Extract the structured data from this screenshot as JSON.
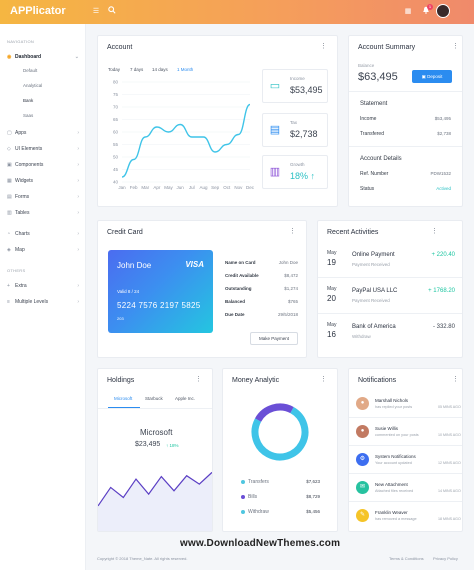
{
  "app": {
    "title": "APPlicator",
    "notif_count": "1"
  },
  "colors": {
    "accent": "#2b8cf0",
    "brand": "#f5a524",
    "positive": "#1bc5a0",
    "negative": "#e85a5a"
  },
  "sidebar": {
    "nav_heading": "NAVIGATION",
    "items": [
      {
        "label": "Dashboard",
        "icon": "home-icon"
      },
      {
        "label": "Apps",
        "icon": "apps-icon"
      },
      {
        "label": "UI Elements",
        "icon": "layers-icon"
      },
      {
        "label": "Components",
        "icon": "box-icon"
      },
      {
        "label": "Widgets",
        "icon": "grid-icon"
      },
      {
        "label": "Forms",
        "icon": "form-icon"
      },
      {
        "label": "Tables",
        "icon": "table-icon"
      },
      {
        "label": "Charts",
        "icon": "chart-icon"
      },
      {
        "label": "Map",
        "icon": "map-icon"
      }
    ],
    "sub_items": [
      "Default",
      "Analytical",
      "Bank",
      "Saas"
    ],
    "others_heading": "OTHERS",
    "others": [
      {
        "label": "Extra",
        "icon": "plus-icon"
      },
      {
        "label": "Multiple Levels",
        "icon": "levels-icon"
      }
    ]
  },
  "account": {
    "title": "Account",
    "tabs": [
      "Today",
      "7 days",
      "14 days",
      "1 Month"
    ],
    "stats": [
      {
        "label": "Income",
        "value": "$53,495",
        "icon": "wallet-icon"
      },
      {
        "label": "Tax",
        "value": "$2,738",
        "icon": "receipt-icon"
      },
      {
        "label": "Growth",
        "value": "18% ↑",
        "icon": "bar-chart-icon"
      }
    ]
  },
  "chart_data": {
    "type": "line",
    "categories": [
      "Jan",
      "Feb",
      "Mar",
      "Apr",
      "May",
      "Jun",
      "Jul",
      "Aug",
      "Sep",
      "Oct",
      "Nov",
      "Dec"
    ],
    "values": [
      42,
      49,
      58,
      62,
      60,
      63,
      58,
      58,
      52,
      55,
      59,
      71
    ],
    "yticks": [
      "40",
      "45",
      "50",
      "55",
      "60",
      "65",
      "70",
      "75",
      "80"
    ],
    "ylim": [
      40,
      80
    ]
  },
  "summary": {
    "title": "Account Summary",
    "balance_label": "Balance",
    "balance": "$63,495",
    "deposit_label": "Deposit",
    "statement_heading": "Statement",
    "income_label": "Income",
    "income_value": "$53,495",
    "transferred_label": "Transfered",
    "transferred_value": "$2,738",
    "details_heading": "Account Details",
    "ref_label": "Ref. Number",
    "ref_value": "PDW1532",
    "status_label": "Status",
    "status_value": "Actived"
  },
  "credit_card": {
    "title": "Credit Card",
    "holder": "John Doe",
    "brand": "VISA",
    "number": "5224  7576  2197  5825",
    "valid": "Valid  8 / 24",
    "cvv": "203",
    "rows": [
      {
        "label": "Name on Card",
        "value": "John Doe"
      },
      {
        "label": "Credit Available",
        "value": "$8,472"
      },
      {
        "label": "Outstanding",
        "value": "$1,274"
      },
      {
        "label": "Balanced",
        "value": "$765"
      },
      {
        "label": "Due Date",
        "value": "29/5/2018"
      }
    ],
    "payment_button": "Make Payment"
  },
  "activities": {
    "title": "Recent Activities",
    "items": [
      {
        "month": "May",
        "day": "19",
        "title": "Online Payment",
        "sub": "Payment Received",
        "amount": "+ 220.40",
        "positive": true
      },
      {
        "month": "May",
        "day": "20",
        "title": "PayPal USA LLC",
        "sub": "Payment Received",
        "amount": "+ 1768.20",
        "positive": true
      },
      {
        "month": "May",
        "day": "16",
        "title": "Bank of America",
        "sub": "Withdraw",
        "amount": "- 332.80",
        "positive": false
      }
    ]
  },
  "holdings": {
    "title": "Holdings",
    "tabs": [
      "Microsoft",
      "Starbuck",
      "Apple Inc."
    ],
    "company": "Microsoft",
    "value": "$23,495",
    "change": "↑ 18%"
  },
  "holdings_chart": {
    "type": "area",
    "values": [
      30,
      52,
      40,
      62,
      44,
      65,
      48,
      66,
      56,
      70
    ]
  },
  "money": {
    "title": "Money Analytic",
    "items": [
      {
        "label": "Transfers",
        "value": "$7,623",
        "color": "#4fc6e0"
      },
      {
        "label": "Bills",
        "value": "$8,729",
        "color": "#6a4fd6"
      },
      {
        "label": "Withdraw",
        "value": "$5,456",
        "color": "#4fc6e0"
      }
    ]
  },
  "donut_chart": {
    "type": "pie",
    "values": [
      75,
      25
    ],
    "colors": [
      "#3fc4e8",
      "#6a4fd6"
    ]
  },
  "notifications": {
    "title": "Notifications",
    "items": [
      {
        "title": "Marshall Nichols",
        "sub": "has replied your posts",
        "time": "05 MINS AGO",
        "icon": "avatar-icon",
        "color": "#e1a987"
      },
      {
        "title": "Susie Willis",
        "sub": "commented on your posts",
        "time": "10 MINS AGO",
        "icon": "avatar-icon",
        "color": "#c27a62"
      },
      {
        "title": "System Notifications",
        "sub": "Your account updated",
        "time": "12 MINS AGO",
        "icon": "gear-icon",
        "color": "#3d6ef0"
      },
      {
        "title": "New Attachment",
        "sub": "Attached files received",
        "time": "14 MINS AGO",
        "icon": "attachment-icon",
        "color": "#27c2a0"
      },
      {
        "title": "Franklin Weaver",
        "sub": "has removed a message",
        "time": "18 MINS AGO",
        "icon": "message-icon",
        "color": "#f5c428"
      }
    ]
  },
  "footer": {
    "copyright": "Copyright © 2018 Theme_Nate. All rights reserved.",
    "terms": "Terms & Conditions",
    "privacy": "Privacy Policy"
  },
  "watermark": "www.DownloadNewThemes.com"
}
